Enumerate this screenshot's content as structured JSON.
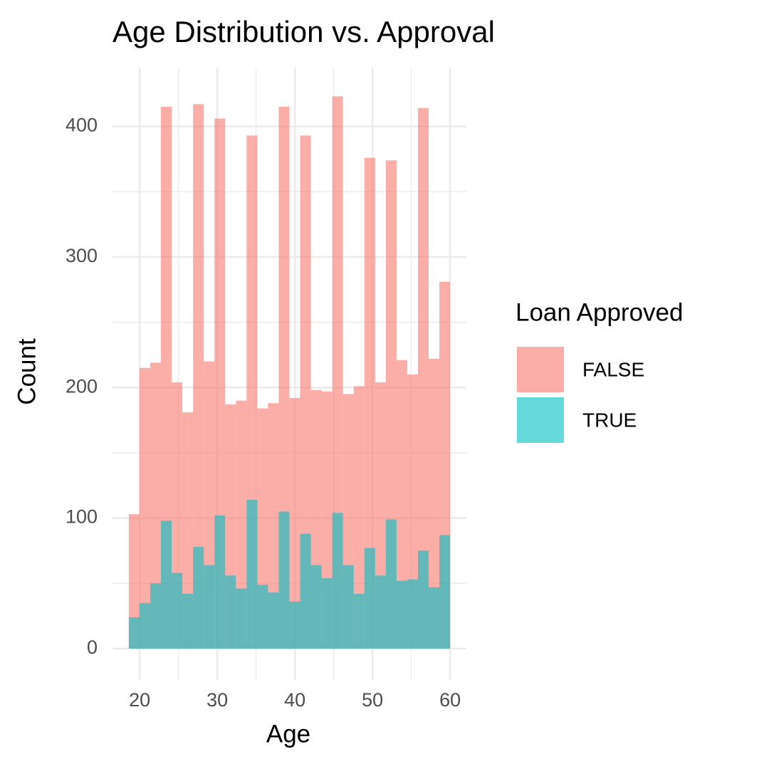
{
  "chart_data": {
    "type": "histogram",
    "title": "Age Distribution vs. Approval",
    "x_label": "Age",
    "y_label": "Count",
    "legend_title": "Loan Approved",
    "legend_position": "right",
    "bins": [
      18.6,
      19.98,
      21.36,
      22.74,
      24.12,
      25.5,
      26.88,
      28.26,
      29.64,
      31.02,
      32.4,
      33.78,
      35.16,
      36.54,
      37.92,
      39.3,
      40.68,
      42.06,
      43.44,
      44.82,
      46.2,
      47.58,
      48.96,
      50.34,
      51.72,
      53.1,
      54.48,
      55.86,
      57.24,
      58.62,
      60.0
    ],
    "series": [
      {
        "name": "FALSE",
        "color": "#F8766D",
        "opacity": 0.6,
        "values": [
          103,
          215,
          219,
          415,
          204,
          181,
          417,
          220,
          406,
          187,
          190,
          393,
          184,
          188,
          415,
          192,
          393,
          198,
          197,
          423,
          195,
          201,
          376,
          204,
          374,
          221,
          210,
          414,
          222,
          281
        ]
      },
      {
        "name": "TRUE",
        "color": "#00BFC4",
        "opacity": 0.6,
        "values": [
          24,
          35,
          50,
          98,
          58,
          42,
          78,
          64,
          102,
          56,
          46,
          114,
          49,
          43,
          105,
          36,
          88,
          64,
          54,
          104,
          64,
          42,
          77,
          56,
          99,
          52,
          53,
          75,
          47,
          87
        ]
      }
    ],
    "xlim": [
      16.5,
      62.1
    ],
    "ylim": [
      -24,
      445
    ],
    "xticks": [
      20,
      30,
      40,
      50,
      60
    ],
    "yticks": [
      0,
      100,
      200,
      300,
      400
    ],
    "x_minor_ticks": [
      25,
      35,
      45,
      55
    ],
    "y_minor_ticks": [
      50,
      150,
      250,
      350
    ],
    "grid": true
  }
}
